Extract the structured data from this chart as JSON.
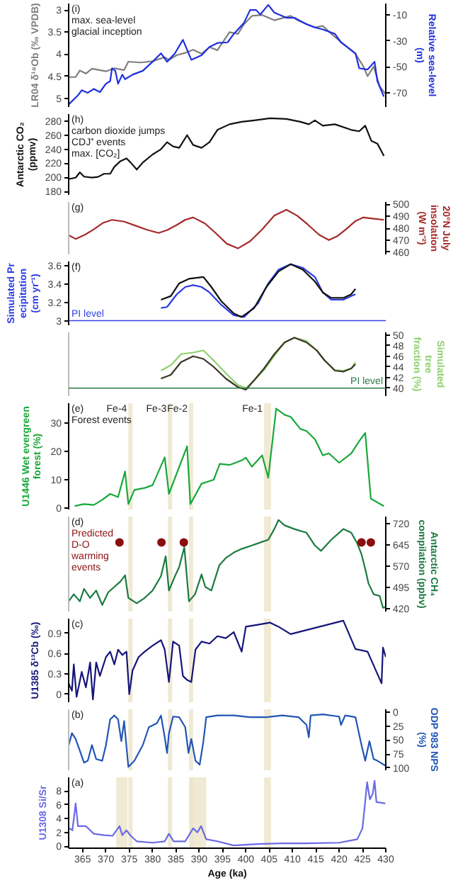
{
  "chart_data": [
    {
      "type": "line",
      "xlim": [
        362,
        430
      ],
      "tick_labels": "y",
      "ylabel": "LR04 δ¹⁸Ob (‰ VPDB)",
      "y2label": "Relative sea-level (m)",
      "ylim": [
        5.2,
        2.85
      ],
      "yticks": [
        3,
        3.5,
        4,
        4.5,
        5
      ],
      "y2lim": [
        -81,
        -1
      ],
      "y2ticks": [
        -10,
        -30,
        -50,
        -70
      ],
      "annotations": [
        "(i)",
        "max. sea-level",
        "glacial inception"
      ],
      "series": [
        {
          "color": "#7f7f7f",
          "axis": "y",
          "x": [
            362.0,
            363.5,
            364.4,
            365.7,
            367.0,
            370.0,
            371.8,
            373.9,
            374.8,
            377.4,
            380.0,
            382.6,
            383.5,
            385.2,
            387.0,
            388.7,
            390.5,
            392.2,
            393.9,
            396.5,
            398.3,
            399.6,
            401.3,
            403.5,
            406.1,
            409.6,
            411.3,
            414.8,
            416.5,
            419.1,
            421.7,
            423.5,
            425.2,
            426.1,
            427.4,
            428.7,
            430.0
          ],
          "values": [
            4.52,
            4.52,
            4.37,
            4.44,
            4.33,
            4.39,
            4.32,
            4.36,
            4.17,
            4.19,
            4.16,
            4.07,
            4.13,
            4.02,
            3.97,
            3.9,
            3.99,
            3.84,
            3.91,
            3.5,
            3.54,
            3.32,
            3.13,
            3.11,
            3.23,
            3.13,
            3.24,
            3.39,
            3.36,
            3.61,
            3.84,
            3.99,
            4.28,
            4.5,
            4.28,
            4.73,
            4.91
          ]
        },
        {
          "color": "#1f2fe0",
          "axis": "y2",
          "x": [
            362.0,
            364.0,
            364.8,
            366.1,
            367.4,
            368.7,
            370.0,
            370.9,
            371.3,
            372.0,
            372.6,
            373.5,
            374.1,
            375.7,
            377.9,
            380.0,
            381.8,
            383.1,
            384.8,
            386.5,
            388.3,
            390.5,
            392.2,
            393.9,
            396.1,
            397.4,
            399.6,
            400.9,
            402.2,
            403.1,
            404.8,
            406.1,
            408.7,
            410.4,
            413.0,
            414.8,
            416.5,
            419.1,
            420.4,
            421.7,
            423.5,
            424.3,
            426.1,
            427.6,
            428.2,
            429.6
          ],
          "values": [
            -79,
            -72,
            -68,
            -70,
            -67,
            -69.5,
            -63,
            -61,
            -51,
            -53,
            -63,
            -56,
            -59.5,
            -56,
            -53,
            -46,
            -39.5,
            -46,
            -39.5,
            -29,
            -44.5,
            -41,
            -34.5,
            -31.5,
            -31,
            -24.5,
            -16,
            -6,
            -6,
            -9.5,
            -2,
            -8,
            -12,
            -12,
            -17,
            -19.5,
            -21,
            -24.5,
            -31,
            -34.5,
            -39.5,
            -51,
            -52,
            -46,
            -61,
            -73
          ]
        }
      ]
    },
    {
      "type": "line",
      "xlim": [
        362,
        430
      ],
      "tick_labels": "y",
      "ylabel": "Antarctic CO₂ (ppmv)",
      "ylim": [
        175,
        290
      ],
      "yticks": [
        180,
        200,
        220,
        240,
        260,
        280
      ],
      "annotations": [
        "(h)",
        "carbon dioxide jumps CDJ⁺ events",
        "max. [CO₂]"
      ],
      "series": [
        {
          "color": "#111111",
          "x": [
            362.0,
            363.5,
            364.4,
            365.3,
            367.0,
            368.3,
            369.6,
            370.9,
            371.8,
            373.1,
            374.4,
            375.3,
            376.6,
            377.9,
            380.0,
            381.8,
            383.1,
            384.4,
            385.7,
            387.4,
            388.7,
            390.5,
            392.2,
            393.9,
            396.5,
            399.1,
            401.8,
            405.2,
            408.7,
            411.7,
            413.5,
            414.8,
            416.5,
            419.1,
            422.6,
            424.3,
            425.6,
            426.9,
            428.2,
            429.6
          ],
          "values": [
            197.5,
            199.5,
            207,
            201,
            199.5,
            200.6,
            205,
            205,
            215,
            223,
            227,
            221,
            211,
            221,
            232.5,
            240,
            250,
            244,
            242,
            260,
            246,
            242,
            250,
            267.5,
            275.5,
            279,
            281,
            284,
            283,
            279,
            275.5,
            281,
            273.5,
            275.5,
            267.5,
            265.5,
            273.5,
            252,
            248,
            230.5
          ]
        }
      ]
    },
    {
      "type": "line",
      "xlim": [
        362,
        430
      ],
      "tick_labels": "y",
      "y2label": "20°N July insolation (W m⁻²)",
      "y2lim": [
        458,
        502
      ],
      "y2ticks": [
        460,
        470,
        480,
        490,
        500
      ],
      "annotations": [
        "(g)"
      ],
      "series": [
        {
          "color": "#a52a2a",
          "axis": "y2",
          "x": [
            362.0,
            363.5,
            365.5,
            367.4,
            369.4,
            371.3,
            373.9,
            376.4,
            378.9,
            381.3,
            383.2,
            385.1,
            387.0,
            388.7,
            391.2,
            393.5,
            395.9,
            398.3,
            400.9,
            403.5,
            406.1,
            408.7,
            411.0,
            413.3,
            415.7,
            417.8,
            419.7,
            421.6,
            423.5,
            425.2,
            427.4,
            429.6
          ],
          "values": [
            474,
            471,
            474.5,
            479,
            484.5,
            487,
            485.5,
            482,
            478.5,
            476,
            478.5,
            482.5,
            487,
            489,
            484,
            476,
            467,
            463,
            469,
            479,
            490.5,
            495.5,
            490.5,
            483,
            474.5,
            470,
            473.5,
            479.5,
            486,
            489,
            488,
            487
          ]
        }
      ]
    },
    {
      "type": "line",
      "xlim": [
        362,
        430
      ],
      "tick_labels": "y",
      "ylabel": "Simulated Precipitation (cm yr⁻¹)",
      "ylim": [
        2.95,
        3.65
      ],
      "yticks": [
        3,
        3.2,
        3.4,
        3.6
      ],
      "annotations": [
        "(f)"
      ],
      "ref_lines": [
        {
          "axis": "y",
          "value": 3,
          "label": "PI level",
          "color": "#3040e0"
        }
      ],
      "series": [
        {
          "color": "#2b3be6",
          "x": [
            381.8,
            383.1,
            385.2,
            387.0,
            388.7,
            390.5,
            392.2,
            394.8,
            397.4,
            399.6,
            402.6,
            404.8,
            407.0,
            409.6,
            412.2,
            414.8,
            416.5,
            418.3,
            420.9,
            422.6,
            423.5
          ],
          "values": [
            3.14,
            3.15,
            3.29,
            3.37,
            3.39,
            3.37,
            3.31,
            3.17,
            3.06,
            3.04,
            3.19,
            3.41,
            3.56,
            3.62,
            3.58,
            3.48,
            3.31,
            3.23,
            3.23,
            3.27,
            3.29
          ]
        },
        {
          "color": "#111111",
          "x": [
            381.8,
            383.9,
            385.7,
            387.8,
            390.9,
            392.6,
            394.8,
            397.4,
            399.1,
            401.8,
            404.4,
            407.0,
            409.6,
            412.2,
            414.8,
            416.5,
            418.3,
            420.9,
            422.6,
            423.5
          ],
          "values": [
            3.23,
            3.27,
            3.41,
            3.46,
            3.48,
            3.37,
            3.21,
            3.08,
            3.04,
            3.14,
            3.37,
            3.54,
            3.62,
            3.56,
            3.43,
            3.31,
            3.25,
            3.25,
            3.29,
            3.35
          ]
        }
      ]
    },
    {
      "type": "line",
      "xlim": [
        362,
        430
      ],
      "tick_labels": "y",
      "y2label": "Simulated tree fraction (%)",
      "y2lim": [
        38.5,
        50.5
      ],
      "y2ticks": [
        40,
        42,
        44,
        46,
        48,
        50
      ],
      "ref_lines": [
        {
          "axis": "y2",
          "value": 40,
          "label": "PI level",
          "color": "#2a7a4a"
        }
      ],
      "series": [
        {
          "color": "#8fd070",
          "axis": "y2",
          "x": [
            381.8,
            383.9,
            386.1,
            388.7,
            390.9,
            393.1,
            395.7,
            398.3,
            400.0,
            401.8,
            403.9,
            406.1,
            408.3,
            410.4,
            413.0,
            415.2,
            416.9,
            419.1,
            420.9,
            422.6,
            423.5
          ],
          "values": [
            43.3,
            44.3,
            46.4,
            46.7,
            47.1,
            45.2,
            42.8,
            40.6,
            40,
            41.5,
            43.4,
            46.1,
            48.6,
            49.5,
            48.9,
            47.1,
            45.2,
            43.4,
            43.3,
            43.7,
            44.9
          ]
        },
        {
          "color": "#3d3526",
          "axis": "y2",
          "x": [
            381.8,
            383.9,
            386.1,
            388.7,
            390.9,
            393.1,
            395.7,
            398.3,
            400.0,
            401.8,
            403.9,
            406.1,
            408.3,
            410.4,
            413.0,
            415.2,
            416.9,
            419.1,
            420.9,
            422.6,
            423.5
          ],
          "values": [
            41.8,
            42.5,
            44.9,
            46,
            45.5,
            44,
            41.8,
            40.2,
            39.7,
            41.5,
            43.7,
            46.4,
            48.6,
            49.5,
            48.6,
            47.1,
            45.2,
            43.3,
            43.1,
            43.7,
            44.5
          ]
        }
      ]
    },
    {
      "type": "line",
      "xlim": [
        362,
        430
      ],
      "tick_labels": "y",
      "ylabel": "U1446 Wet evergreen forest (%)",
      "ylim": [
        -0.5,
        37
      ],
      "yticks": [
        0,
        10,
        20,
        30
      ],
      "annotations": [
        "(e)",
        "Forest events"
      ],
      "bands": [
        {
          "axis": "x",
          "from": 374.8,
          "to": 375.7,
          "label": "Fe-4",
          "color": "#ece3c8"
        },
        {
          "axis": "x",
          "from": 383.3,
          "to": 384.2,
          "label": "Fe-3",
          "color": "#ece3c8"
        },
        {
          "axis": "x",
          "from": 387.8,
          "to": 388.7,
          "label": "Fe-2",
          "color": "#ece3c8"
        },
        {
          "axis": "x",
          "from": 403.9,
          "to": 405.4,
          "label": "Fe-1",
          "color": "#ece3c8"
        }
      ],
      "series": [
        {
          "color": "#19a83a",
          "x": [
            363.3,
            365.3,
            367.4,
            369.2,
            370.9,
            372.6,
            374.1,
            374.8,
            376.1,
            378.3,
            380.0,
            382.6,
            383.5,
            387.4,
            388.1,
            390.5,
            393.1,
            394.4,
            396.5,
            399.1,
            400.0,
            401.3,
            403.5,
            404.8,
            406.5,
            408.3,
            409.6,
            411.7,
            413.0,
            414.8,
            416.5,
            417.8,
            420.0,
            422.6,
            424.3,
            425.6,
            426.8,
            429.6
          ],
          "values": [
            0.7,
            1.4,
            1.1,
            2.9,
            5,
            3.9,
            12.9,
            1.4,
            6.4,
            7.1,
            8.1,
            17.9,
            5,
            21.8,
            1.4,
            8.6,
            10,
            15.6,
            15.2,
            16.8,
            17.8,
            14.6,
            18.6,
            10.7,
            35.1,
            32.9,
            32.2,
            27.9,
            27.2,
            24.3,
            18.6,
            19.3,
            16.0,
            19.3,
            23.6,
            26.5,
            3.3,
            0.7
          ]
        }
      ]
    },
    {
      "type": "line",
      "xlim": [
        362,
        430
      ],
      "tick_labels": "y",
      "y2label": "Antarctic CH₄ compilation (ppbv)",
      "y2lim": [
        410,
        745
      ],
      "y2ticks": [
        420,
        495,
        570,
        645,
        720
      ],
      "annotations": [
        "(d)"
      ],
      "bands": [
        {
          "axis": "x",
          "from": 374.8,
          "to": 375.7,
          "label": null,
          "color": "#ece3c8"
        },
        {
          "axis": "x",
          "from": 383.3,
          "to": 384.2,
          "label": null,
          "color": "#ece3c8"
        },
        {
          "axis": "x",
          "from": 387.8,
          "to": 388.7,
          "label": null,
          "color": "#ece3c8"
        },
        {
          "axis": "x",
          "from": 403.9,
          "to": 405.4,
          "label": null,
          "color": "#ece3c8"
        }
      ],
      "series": [
        {
          "color": "#1b7a40",
          "axis": "y2",
          "x": [
            362.0,
            363.1,
            364.4,
            365.3,
            366.6,
            367.9,
            369.2,
            370.5,
            371.8,
            373.1,
            374.1,
            374.8,
            376.6,
            378.3,
            380.0,
            381.8,
            382.8,
            383.5,
            384.8,
            385.7,
            386.8,
            387.8,
            389.1,
            390.5,
            391.3,
            392.6,
            394.3,
            395.7,
            397.4,
            399.1,
            401.3,
            403.5,
            404.8,
            406.1,
            407.0,
            408.3,
            410.4,
            413.0,
            414.8,
            416.1,
            418.3,
            420.9,
            422.6,
            423.9,
            424.8,
            425.6,
            426.3,
            427.4,
            428.7,
            429.4,
            430.0
          ],
          "values": [
            446,
            471,
            446,
            490,
            458,
            484,
            433,
            478,
            497,
            516,
            538,
            458,
            439,
            458,
            484,
            535,
            605,
            484,
            535,
            567,
            637,
            446,
            471,
            541,
            497,
            484,
            573,
            599,
            618,
            631,
            643,
            656,
            663,
            701,
            733,
            714,
            701,
            688,
            643,
            624,
            663,
            701,
            688,
            650,
            612,
            560,
            509,
            471,
            465,
            423,
            426
          ]
        },
        {
          "type": "scatter",
          "name": "Predicted D-O warming events",
          "color": "#8b0f0f",
          "axis": "y2",
          "marker": "circle",
          "x": [
            372.9,
            381.9,
            386.7,
            424.8,
            426.8
          ],
          "values": [
            654,
            654,
            654,
            654,
            654
          ]
        }
      ]
    },
    {
      "type": "line",
      "xlim": [
        362,
        430
      ],
      "tick_labels": "y",
      "ylabel": "U1385 δ¹³Cb (‰)",
      "ylim": [
        -0.12,
        1.12
      ],
      "yticks": [
        0,
        0.3,
        0.6,
        0.9
      ],
      "annotations": [
        "(c)"
      ],
      "bands": [
        {
          "axis": "x",
          "from": 374.8,
          "to": 375.7,
          "label": null,
          "color": "#ece3c8"
        },
        {
          "axis": "x",
          "from": 383.3,
          "to": 384.2,
          "label": null,
          "color": "#ece3c8"
        },
        {
          "axis": "x",
          "from": 387.8,
          "to": 388.7,
          "label": null,
          "color": "#ece3c8"
        },
        {
          "axis": "x",
          "from": 403.9,
          "to": 405.4,
          "label": null,
          "color": "#ece3c8"
        }
      ],
      "series": [
        {
          "color": "#15157a",
          "x": [
            362.0,
            362.7,
            363.1,
            363.7,
            364.8,
            365.7,
            366.6,
            367.2,
            367.9,
            368.7,
            370.0,
            370.9,
            371.8,
            372.6,
            373.5,
            374.4,
            375.0,
            375.7,
            377.0,
            378.3,
            380.0,
            381.8,
            382.6,
            383.5,
            384.4,
            385.7,
            386.5,
            387.4,
            388.3,
            389.2,
            390.5,
            392.2,
            393.9,
            395.7,
            397.4,
            399.1,
            400.0,
            402.6,
            405.2,
            407.0,
            409.6,
            420.9,
            423.5,
            426.1,
            429.1,
            429.4,
            430.0
          ],
          "values": [
            0.16,
            0.05,
            0.44,
            -0.04,
            0.33,
            0.1,
            0.47,
            -0.08,
            0.47,
            0.27,
            0.55,
            0.63,
            0.44,
            0.66,
            0.58,
            0.63,
            0.0,
            0.35,
            0.55,
            0.63,
            0.72,
            0.8,
            0.66,
            0.18,
            0.78,
            0.72,
            0.27,
            0.21,
            0.18,
            0.66,
            0.78,
            0.75,
            0.86,
            0.83,
            0.92,
            0.63,
            1.0,
            1.03,
            1.06,
            1.0,
            0.89,
            1.09,
            0.67,
            0.63,
            0.16,
            0.69,
            0.55
          ]
        }
      ]
    },
    {
      "type": "line",
      "xlim": [
        362,
        430
      ],
      "tick_labels": "y",
      "y2label": "ODP 983 NPS (%)",
      "y2lim": [
        104,
        -5
      ],
      "y2ticks": [
        0,
        25,
        50,
        75,
        100
      ],
      "annotations": [
        "(b)"
      ],
      "bands": [
        {
          "axis": "x",
          "from": 374.8,
          "to": 375.7,
          "label": null,
          "color": "#ece3c8"
        },
        {
          "axis": "x",
          "from": 383.3,
          "to": 384.2,
          "label": null,
          "color": "#ece3c8"
        },
        {
          "axis": "x",
          "from": 387.8,
          "to": 388.7,
          "label": null,
          "color": "#ece3c8"
        },
        {
          "axis": "x",
          "from": 403.9,
          "to": 405.4,
          "label": null,
          "color": "#ece3c8"
        }
      ],
      "series": [
        {
          "color": "#2255b5",
          "axis": "y2",
          "x": [
            362.0,
            362.7,
            363.5,
            364.4,
            365.3,
            366.1,
            367.0,
            367.9,
            369.2,
            370.0,
            370.9,
            371.8,
            372.6,
            373.3,
            373.9,
            374.8,
            376.1,
            377.9,
            379.2,
            380.9,
            381.8,
            382.6,
            383.1,
            383.5,
            384.4,
            385.7,
            387.0,
            387.7,
            388.3,
            389.2,
            390.1,
            390.9,
            391.5,
            393.9,
            397.4,
            400.9,
            404.4,
            407.8,
            411.3,
            413.0,
            413.5,
            413.9,
            416.5,
            420.0,
            420.4,
            421.3,
            423.5,
            424.8,
            425.6,
            426.5,
            427.4,
            428.2,
            430.0
          ],
          "values": [
            60,
            37.6,
            48,
            69,
            90.5,
            87,
            59,
            84,
            87,
            59,
            13,
            6,
            13,
            52,
            16,
            98,
            87,
            59,
            27,
            20,
            6,
            45,
            73,
            38,
            8,
            9,
            27,
            73,
            48,
            87,
            94,
            52,
            9,
            6,
            6,
            9,
            9,
            6,
            9,
            23,
            45,
            6,
            4,
            8,
            23,
            6,
            9,
            59,
            87,
            52,
            84,
            87,
            96
          ]
        }
      ]
    },
    {
      "type": "line",
      "xlim": [
        362,
        430
      ],
      "xticks": [
        365,
        370,
        375,
        380,
        385,
        390,
        395,
        400,
        405,
        410,
        415,
        420,
        425,
        430
      ],
      "xlabel": "Age (ka)",
      "ylabel": "U1308 Si/Sr",
      "ylim": [
        -0.3,
        10
      ],
      "yticks": [
        0,
        2,
        4,
        6,
        8
      ],
      "annotations": [
        "(a)"
      ],
      "bands": [
        {
          "axis": "x",
          "from": 372.2,
          "to": 374.6,
          "label": null,
          "color": "#ece3c8"
        },
        {
          "axis": "x",
          "from": 374.8,
          "to": 375.7,
          "label": null,
          "color": "#ece3c8"
        },
        {
          "axis": "x",
          "from": 383.3,
          "to": 384.2,
          "label": null,
          "color": "#ece3c8"
        },
        {
          "axis": "x",
          "from": 387.8,
          "to": 388.7,
          "label": null,
          "color": "#ece3c8"
        },
        {
          "axis": "x",
          "from": 388.1,
          "to": 391.5,
          "label": null,
          "color": "#ece3c8"
        },
        {
          "axis": "x",
          "from": 403.9,
          "to": 405.4,
          "label": null,
          "color": "#ece3c8"
        }
      ],
      "series": [
        {
          "color": "#6a6ae6",
          "x": [
            362.2,
            362.8,
            363.5,
            364.0,
            365.7,
            367.4,
            369.6,
            371.4,
            372.9,
            373.5,
            374.4,
            375.3,
            376.6,
            380.0,
            382.6,
            383.5,
            384.5,
            387.0,
            388.7,
            389.6,
            390.4,
            391.5,
            393.9,
            397.4,
            402.6,
            407.8,
            413.0,
            420.0,
            423.9,
            425.0,
            425.6,
            426.0,
            426.6,
            427.2,
            427.6,
            428.0,
            429.0,
            429.9
          ],
          "values": [
            2.6,
            2.3,
            6.2,
            2.9,
            2.9,
            1.8,
            1.6,
            1.5,
            2.9,
            1.6,
            2.3,
            1.5,
            0.7,
            0.5,
            0.7,
            1.8,
            0.7,
            0.7,
            2.6,
            2.0,
            2.9,
            1.0,
            0.7,
            0.1,
            0.3,
            0.4,
            0.4,
            0.5,
            1.0,
            2.6,
            6.5,
            9.3,
            6.8,
            7.6,
            9.5,
            6.4,
            6.3,
            6.2
          ]
        }
      ]
    }
  ]
}
